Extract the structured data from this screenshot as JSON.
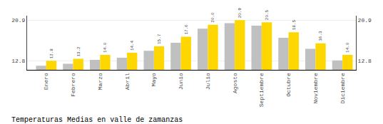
{
  "chart_data": {
    "type": "bar",
    "title": "Temperaturas Medias en valle de zamanzas",
    "categories": [
      "Enero",
      "Febrero",
      "Marzo",
      "Abril",
      "Mayo",
      "Junio",
      "Julio",
      "Agosto",
      "Septiembre",
      "Octubre",
      "Noviembre",
      "Diciembre"
    ],
    "series": [
      {
        "color": "#C0C0C0",
        "values": [
          11.8,
          12.2,
          13.0,
          13.4,
          14.8,
          16.4,
          19.2,
          20.3,
          19.8,
          17.4,
          15.2,
          12.9
        ]
      },
      {
        "color": "#FFD700",
        "values": [
          12.8,
          13.2,
          14.0,
          14.4,
          15.7,
          17.6,
          20.0,
          20.9,
          20.5,
          18.5,
          16.3,
          14.0
        ],
        "data_labels": true,
        "value_labels": [
          "12.8",
          "13.2",
          "14.0",
          "14.4",
          "15.7",
          "17.6",
          "20.0",
          "20.9",
          "20.5",
          "18.5",
          "16.3",
          "14.0"
        ]
      }
    ],
    "ylim": [
      11.0,
      21.8
    ],
    "yticks": [
      12.8,
      20.9
    ],
    "y2lim": [
      11.0,
      21.8
    ],
    "y2ticks": [
      12.8,
      20.9
    ],
    "grid": true
  }
}
